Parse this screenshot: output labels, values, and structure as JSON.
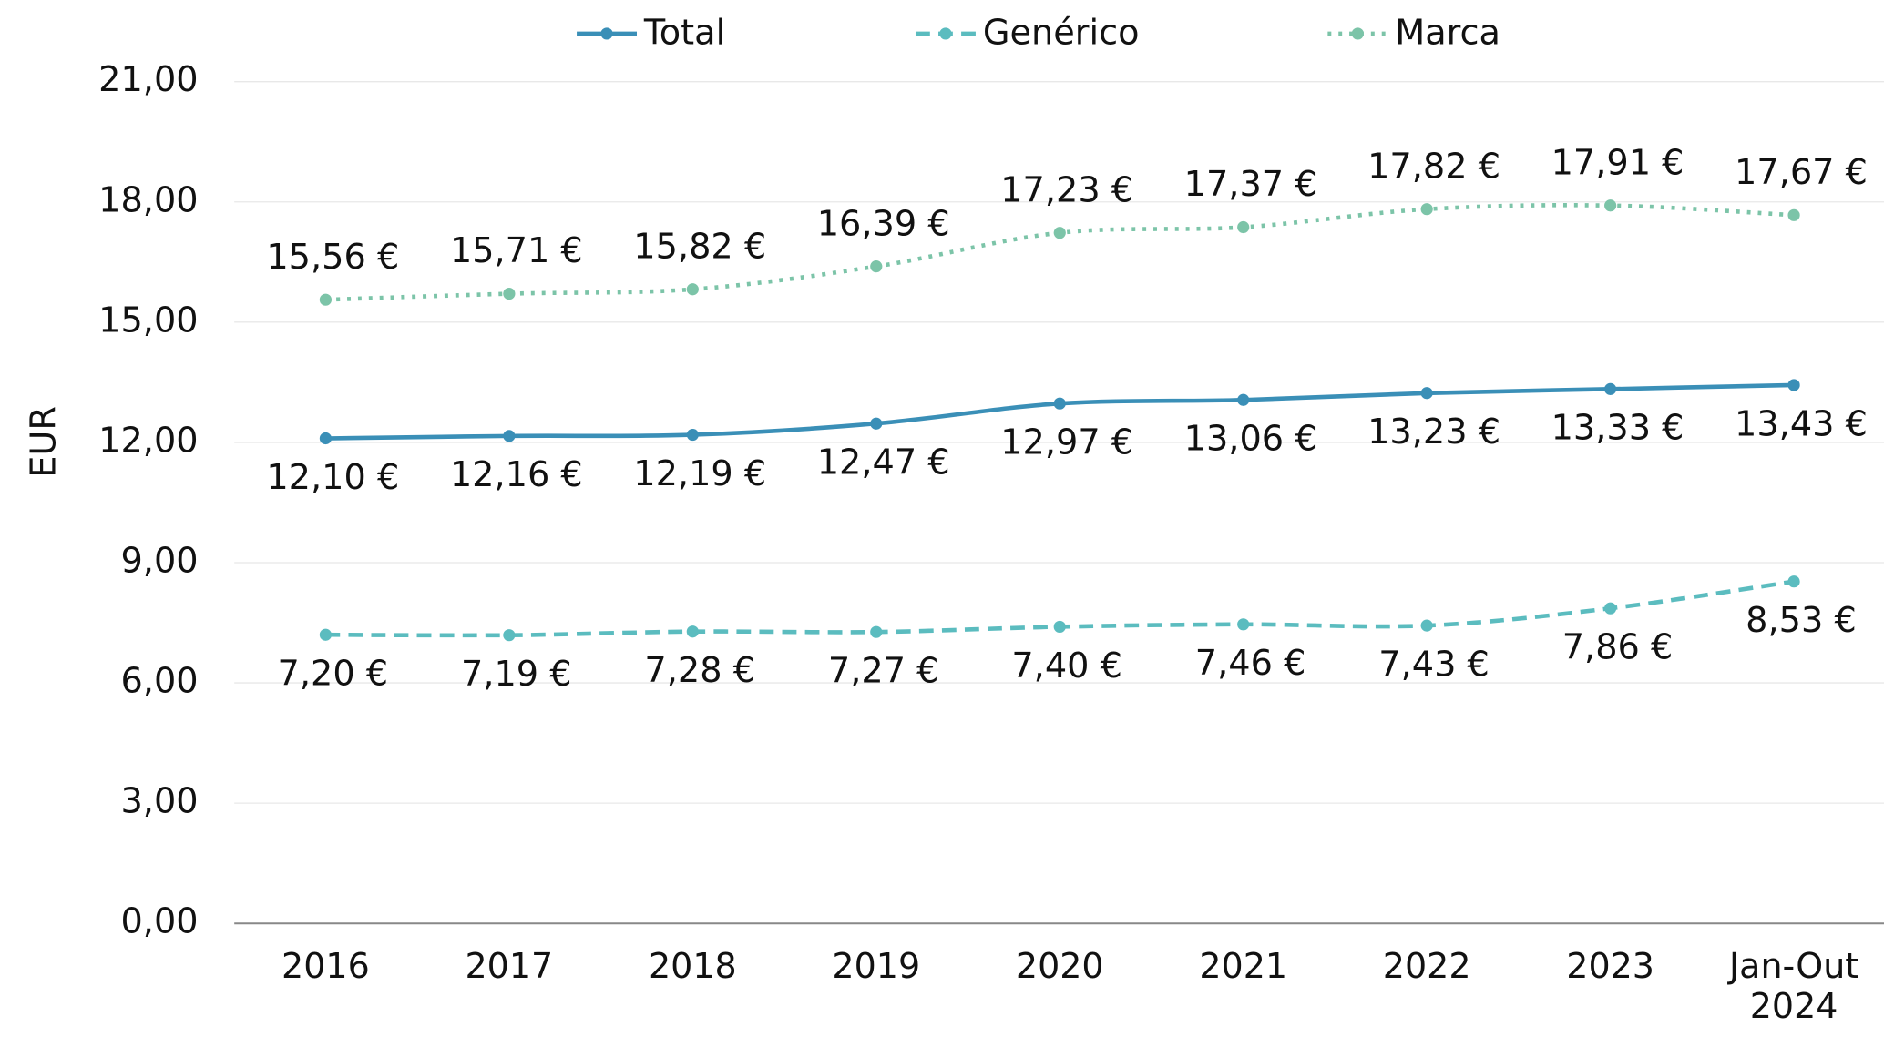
{
  "chart_data": {
    "type": "line",
    "y_label": "EUR",
    "legend": "top",
    "categories": [
      "2016",
      "2017",
      "2018",
      "2019",
      "2020",
      "2021",
      "2022",
      "2023",
      "Jan-Out 2024"
    ],
    "ylim": [
      0,
      21
    ],
    "yticks": [
      {
        "value": 0,
        "label": "0,00"
      },
      {
        "value": 3,
        "label": "3,00"
      },
      {
        "value": 6,
        "label": "6,00"
      },
      {
        "value": 9,
        "label": "9,00"
      },
      {
        "value": 12,
        "label": "12,00"
      },
      {
        "value": 15,
        "label": "15,00"
      },
      {
        "value": 18,
        "label": "18,00"
      },
      {
        "value": 21,
        "label": "21,00"
      }
    ],
    "grid": true,
    "series": [
      {
        "name": "Total",
        "color": "#3a8fb7",
        "dash": "solid",
        "label_position": "below",
        "values": [
          12.1,
          12.16,
          12.19,
          12.47,
          12.97,
          13.06,
          13.23,
          13.33,
          13.43
        ],
        "value_labels": [
          "12,10 €",
          "12,16 €",
          "12,19 €",
          "12,47 €",
          "12,97 €",
          "13,06 €",
          "13,23 €",
          "13,33 €",
          "13,43 €"
        ]
      },
      {
        "name": "Genérico",
        "color": "#5bbcbf",
        "dash": "dashed",
        "label_position": "below",
        "values": [
          7.2,
          7.19,
          7.28,
          7.27,
          7.4,
          7.46,
          7.43,
          7.86,
          8.53
        ],
        "value_labels": [
          "7,20 €",
          "7,19 €",
          "7,28 €",
          "7,27 €",
          "7,40 €",
          "7,46 €",
          "7,43 €",
          "7,86 €",
          "8,53 €"
        ]
      },
      {
        "name": "Marca",
        "color": "#7cc4a8",
        "dash": "dotted",
        "label_position": "above",
        "values": [
          15.56,
          15.71,
          15.82,
          16.39,
          17.23,
          17.37,
          17.82,
          17.91,
          17.67
        ],
        "value_labels": [
          "15,56 €",
          "15,71 €",
          "15,82 €",
          "16,39 €",
          "17,23 €",
          "17,37 €",
          "17,82 €",
          "17,91 €",
          "17,67 €"
        ]
      }
    ]
  }
}
